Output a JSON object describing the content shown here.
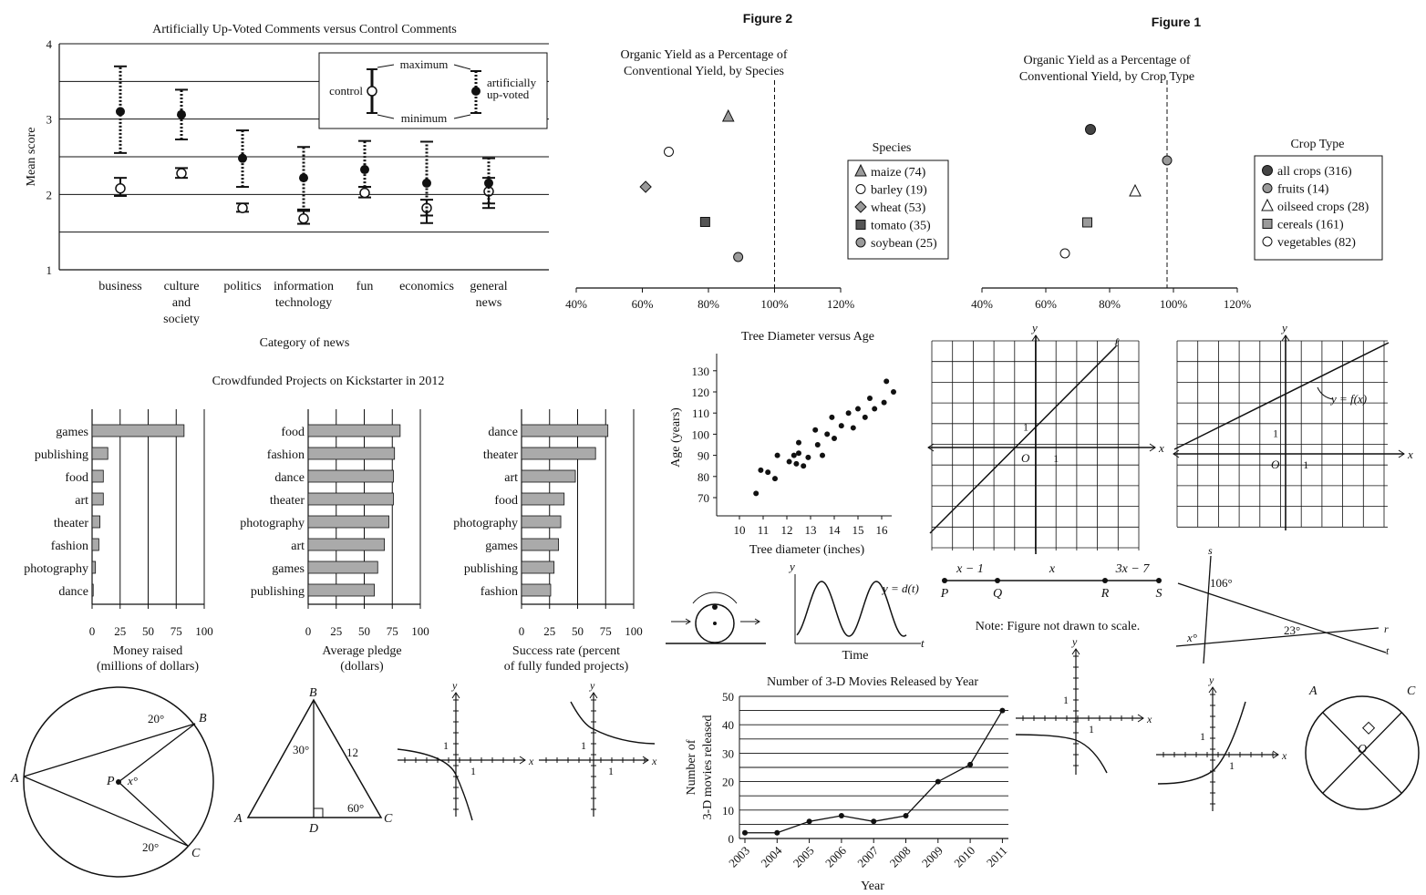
{
  "upvote": {
    "title": "Artificially Up-Voted Comments versus Control Comments",
    "ylabel": "Mean score",
    "xlabel": "Category of news",
    "yticks": [
      "1",
      "2",
      "3",
      "4"
    ],
    "legend": {
      "maximum": "maximum",
      "minimum": "minimum",
      "control": "control",
      "upvoted_1": "artificially",
      "upvoted_2": "up-voted"
    }
  },
  "fig2": {
    "figure_label": "Figure 2",
    "title_1": "Organic Yield as a Percentage of",
    "title_2": "Conventional Yield, by Species",
    "legend_title": "Species",
    "xticks": [
      "40%",
      "60%",
      "80%",
      "100%",
      "120%"
    ]
  },
  "fig1": {
    "figure_label": "Figure 1",
    "title_1": "Organic Yield as a Percentage of",
    "title_2": "Conventional Yield, by Crop Type",
    "legend_title": "Crop Type",
    "xticks": [
      "40%",
      "60%",
      "80%",
      "100%",
      "120%"
    ]
  },
  "kickstarter": {
    "title": "Crowdfunded Projects on Kickstarter in 2012",
    "xticks": [
      "0",
      "25",
      "50",
      "75",
      "100"
    ],
    "p1_xlabel_1": "Money raised",
    "p1_xlabel_2": "(millions of dollars)",
    "p2_xlabel_1": "Average pledge",
    "p2_xlabel_2": "(dollars)",
    "p3_xlabel_1": "Success rate (percent",
    "p3_xlabel_2": "of fully funded projects)"
  },
  "tree": {
    "title": "Tree Diameter versus Age",
    "xlabel": "Tree diameter (inches)",
    "ylabel": "Age (years)",
    "xticks": [
      "10",
      "11",
      "12",
      "13",
      "14",
      "15",
      "16"
    ],
    "yticks": [
      "70",
      "80",
      "90",
      "100",
      "110",
      "120",
      "130"
    ]
  },
  "movies": {
    "title": "Number of 3-D Movies Released by Year",
    "xlabel": "Year",
    "ylabel_1": "Number of",
    "ylabel_2": "3-D movies released",
    "yticks": [
      "0",
      "10",
      "20",
      "30",
      "40",
      "50"
    ]
  },
  "geometry": {
    "axis_x": "x",
    "axis_y": "y",
    "origin": "O",
    "one": "1",
    "line_l": "ℓ",
    "fx": "y = f(x)",
    "seg_labels": [
      "x − 1",
      "x",
      "3x − 7"
    ],
    "seg_points": [
      "P",
      "Q",
      "R",
      "S"
    ],
    "note": "Note: Figure not drawn to scale.",
    "angle_106": "106°",
    "angle_x": "x°",
    "angle_23": "23°",
    "line_s": "s",
    "line_r": "r",
    "line_t": "t",
    "circle_labels": {
      "A": "A",
      "B": "B",
      "C": "C",
      "P": "P",
      "x": "x°",
      "a20": "20°"
    },
    "tri_labels": {
      "A": "A",
      "B": "B",
      "C": "C",
      "D": "D",
      "a30": "30°",
      "a60": "60°",
      "s12": "12"
    },
    "wave_label": "y = d(t)",
    "wave_t": "t",
    "wave_y": "y",
    "time": "Time",
    "circle2_labels": {
      "A": "A",
      "C": "C",
      "O": "O"
    }
  },
  "chart_data": [
    {
      "type": "scatter",
      "title": "Artificially Up-Voted Comments versus Control Comments",
      "xlabel": "Category of news",
      "ylabel": "Mean score",
      "ylim": [
        1,
        4
      ],
      "categories": [
        "business",
        "culture and society",
        "politics",
        "information technology",
        "fun",
        "economics",
        "general news"
      ],
      "series": [
        {
          "name": "control",
          "values": [
            2.08,
            2.28,
            1.82,
            1.68,
            2.02,
            1.82,
            2.04
          ],
          "min": [
            1.98,
            2.22,
            1.77,
            1.61,
            1.96,
            1.62,
            1.82
          ],
          "max": [
            2.22,
            2.35,
            1.88,
            1.8,
            2.1,
            1.93,
            2.22
          ]
        },
        {
          "name": "artificially up-voted",
          "values": [
            3.1,
            3.06,
            2.48,
            2.22,
            2.33,
            2.15,
            2.15
          ],
          "min": [
            2.55,
            2.73,
            2.1,
            1.78,
            2.1,
            1.72,
            1.88
          ],
          "max": [
            3.7,
            3.39,
            2.85,
            2.63,
            2.71,
            2.7,
            2.48
          ]
        }
      ],
      "grid": true
    },
    {
      "type": "scatter",
      "title": "Organic Yield as a Percentage of Conventional Yield, by Species",
      "xlim": [
        40,
        120
      ],
      "reference_line": 100,
      "series": [
        {
          "name": "maize (74)",
          "marker": "triangle-gray",
          "x": 86,
          "rank": 1
        },
        {
          "name": "barley (19)",
          "marker": "circle-open",
          "x": 68,
          "rank": 2
        },
        {
          "name": "wheat (53)",
          "marker": "diamond",
          "x": 61,
          "rank": 3
        },
        {
          "name": "tomato (35)",
          "marker": "square",
          "x": 79,
          "rank": 4
        },
        {
          "name": "soybean (25)",
          "marker": "circle-gray",
          "x": 89,
          "rank": 5
        }
      ]
    },
    {
      "type": "scatter",
      "title": "Organic Yield as a Percentage of Conventional Yield, by Crop Type",
      "xlim": [
        40,
        120
      ],
      "reference_line": 98,
      "series": [
        {
          "name": "all crops (316)",
          "marker": "circle-dark",
          "x": 74,
          "rank": 1
        },
        {
          "name": "fruits (14)",
          "marker": "circle-gray",
          "x": 98,
          "rank": 2
        },
        {
          "name": "oilseed crops (28)",
          "marker": "triangle-open",
          "x": 88,
          "rank": 3
        },
        {
          "name": "cereals (161)",
          "marker": "square-gray",
          "x": 73,
          "rank": 4
        },
        {
          "name": "vegetables (82)",
          "marker": "circle-open",
          "x": 66,
          "rank": 5
        }
      ]
    },
    {
      "type": "bar",
      "title": "Crowdfunded Projects on Kickstarter in 2012",
      "xlabel": "Money raised (millions of dollars)",
      "xlim": [
        0,
        100
      ],
      "categories": [
        "games",
        "publishing",
        "food",
        "art",
        "theater",
        "fashion",
        "photography",
        "dance"
      ],
      "values": [
        82,
        14,
        10,
        10,
        7,
        6,
        3,
        1
      ]
    },
    {
      "type": "bar",
      "xlabel": "Average pledge (dollars)",
      "xlim": [
        0,
        100
      ],
      "categories": [
        "food",
        "fashion",
        "dance",
        "theater",
        "photography",
        "art",
        "games",
        "publishing"
      ],
      "values": [
        82,
        77,
        76,
        76,
        72,
        68,
        62,
        59
      ]
    },
    {
      "type": "bar",
      "xlabel": "Success rate (percent of fully funded projects)",
      "xlim": [
        0,
        100
      ],
      "categories": [
        "dance",
        "theater",
        "art",
        "food",
        "photography",
        "games",
        "publishing",
        "fashion"
      ],
      "values": [
        77,
        66,
        48,
        38,
        35,
        33,
        29,
        26
      ]
    },
    {
      "type": "scatter",
      "title": "Tree Diameter versus Age",
      "xlabel": "Tree diameter (inches)",
      "ylabel": "Age (years)",
      "xlim": [
        9.7,
        16.6
      ],
      "ylim": [
        64,
        134
      ],
      "points": [
        [
          10.7,
          72
        ],
        [
          10.9,
          83
        ],
        [
          11.2,
          82
        ],
        [
          11.5,
          79
        ],
        [
          11.6,
          90
        ],
        [
          12.1,
          87
        ],
        [
          12.3,
          90
        ],
        [
          12.4,
          86
        ],
        [
          12.5,
          96
        ],
        [
          12.5,
          91
        ],
        [
          12.7,
          85
        ],
        [
          12.9,
          89
        ],
        [
          13.2,
          102
        ],
        [
          13.3,
          95
        ],
        [
          13.5,
          90
        ],
        [
          13.7,
          100
        ],
        [
          13.9,
          108
        ],
        [
          14,
          98
        ],
        [
          14.3,
          104
        ],
        [
          14.6,
          110
        ],
        [
          14.8,
          103
        ],
        [
          15,
          112
        ],
        [
          15.3,
          108
        ],
        [
          15.5,
          117
        ],
        [
          15.7,
          112
        ],
        [
          16.1,
          115
        ],
        [
          16.2,
          125
        ],
        [
          16.5,
          120
        ]
      ]
    },
    {
      "type": "line",
      "title": "Number of 3-D Movies Released by Year",
      "xlabel": "Year",
      "ylabel": "Number of 3-D movies released",
      "ylim": [
        0,
        50
      ],
      "x": [
        "2003",
        "2004",
        "2005",
        "2006",
        "2007",
        "2008",
        "2009",
        "2010",
        "2011"
      ],
      "values": [
        2,
        2,
        6,
        8,
        6,
        8,
        20,
        26,
        45
      ],
      "grid": true
    }
  ]
}
